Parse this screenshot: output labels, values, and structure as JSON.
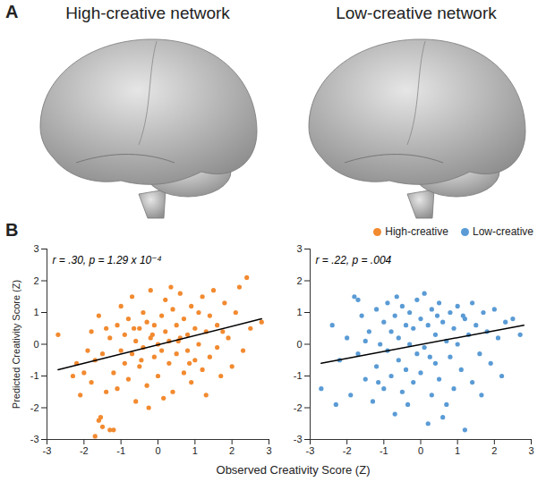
{
  "figure": {
    "panel_a": {
      "label": "A",
      "titles": [
        "High-creative network",
        "Low-creative network"
      ]
    },
    "panel_b": {
      "label": "B",
      "xlabel": "Observed Creativity Score (Z)",
      "ylabel": "Predicted Creativity Score (Z)",
      "legend": "top-right"
    }
  },
  "chart_data": [
    {
      "type": "scatter",
      "annotation": "r = .30, p = 1.29 x 10⁻⁴",
      "xlim": [
        -3,
        3
      ],
      "ylim": [
        -3,
        3
      ],
      "xticks": [
        -3,
        -2,
        -1,
        0,
        1,
        2,
        3
      ],
      "yticks": [
        -3,
        -2,
        -1,
        0,
        1,
        2,
        3
      ],
      "x": [
        -2.7,
        -2.3,
        -2.2,
        -2.0,
        -1.9,
        -1.8,
        -1.7,
        -1.6,
        -1.5,
        -1.3,
        -1.2,
        -1.55,
        -1.8,
        -1.7,
        -1.6,
        -1.5,
        -1.4,
        -1.3,
        -1.2,
        -1.1,
        -1.1,
        -1.0,
        -1.0,
        -0.9,
        -0.9,
        -0.8,
        -0.8,
        -0.7,
        -0.7,
        -0.6,
        -0.6,
        -0.5,
        -0.5,
        -0.4,
        -0.4,
        -0.3,
        -0.3,
        -0.2,
        -0.2,
        -0.1,
        -0.1,
        0.0,
        0.0,
        0.1,
        0.1,
        0.2,
        0.2,
        0.3,
        0.3,
        0.4,
        0.4,
        0.5,
        0.5,
        0.6,
        0.6,
        0.7,
        0.7,
        0.8,
        0.8,
        0.9,
        0.9,
        1.0,
        1.0,
        1.1,
        1.1,
        1.2,
        1.2,
        1.3,
        1.4,
        1.4,
        1.5,
        1.6,
        1.6,
        1.7,
        1.8,
        1.9,
        2.0,
        2.1,
        2.2,
        2.3,
        2.4,
        2.5,
        2.8,
        -0.25,
        0.15,
        -1.4,
        0.35,
        1.3,
        -0.65,
        0.85,
        -0.45,
        0.55,
        -0.15,
        1.75,
        -2.1
      ],
      "series": [
        {
          "name": "High-creative",
          "color": "#f28a30",
          "values": [
            0.3,
            -1.0,
            -0.6,
            -0.9,
            -0.2,
            0.4,
            -2.9,
            -2.4,
            -2.6,
            -2.7,
            -2.7,
            -2.3,
            -1.2,
            -0.5,
            0.9,
            -0.3,
            -1.5,
            0.2,
            -0.9,
            0.6,
            -1.4,
            -0.2,
            1.2,
            -0.6,
            0.3,
            -1.1,
            0.8,
            -0.3,
            1.5,
            0.1,
            -1.8,
            0.5,
            -0.7,
            1.0,
            -0.1,
            0.7,
            -1.3,
            0.2,
            1.7,
            -0.4,
            0.6,
            0.0,
            -1.0,
            0.9,
            -0.2,
            0.4,
            1.4,
            -0.6,
            0.1,
            1.1,
            -1.5,
            0.6,
            -0.3,
            0.2,
            1.6,
            -0.9,
            0.8,
            0.3,
            -0.2,
            1.2,
            -1.2,
            0.5,
            -0.5,
            1.0,
            0.0,
            -0.8,
            1.5,
            0.4,
            -0.4,
            0.9,
            1.7,
            -0.1,
            0.6,
            -1.0,
            1.3,
            0.2,
            -0.7,
            1.0,
            1.8,
            -0.2,
            2.1,
            0.5,
            0.7,
            -2.0,
            -1.7,
            0.5,
            1.8,
            -1.6,
            0.5,
            -0.6,
            -0.5,
            0.1,
            0.3,
            0.4,
            -1.6
          ]
        }
      ],
      "fit_line": {
        "x": [
          -2.7,
          2.8
        ],
        "y": [
          -0.8,
          0.8
        ]
      }
    },
    {
      "type": "scatter",
      "annotation": "r = .22, p = .004",
      "xlim": [
        -3,
        3
      ],
      "ylim": [
        -3,
        3
      ],
      "xticks": [
        -3,
        -2,
        -1,
        0,
        1,
        2,
        3
      ],
      "yticks": [
        -3,
        -2,
        -1,
        0,
        1,
        2,
        3
      ],
      "x": [
        -2.7,
        -2.3,
        -2.2,
        -2.0,
        -1.9,
        -1.8,
        -1.7,
        -1.7,
        -1.6,
        -1.5,
        -1.4,
        -1.3,
        -1.2,
        -1.2,
        -1.1,
        -1.0,
        -1.0,
        -0.9,
        -0.9,
        -0.8,
        -0.8,
        -0.7,
        -0.7,
        -0.6,
        -0.6,
        -0.5,
        -0.5,
        -0.4,
        -0.4,
        -0.3,
        -0.3,
        -0.2,
        -0.2,
        -0.1,
        -0.1,
        0.0,
        0.0,
        0.1,
        0.1,
        0.2,
        0.2,
        0.3,
        0.3,
        0.4,
        0.4,
        0.5,
        0.5,
        0.6,
        0.6,
        0.7,
        0.7,
        0.8,
        0.8,
        0.9,
        0.9,
        1.0,
        1.0,
        1.1,
        1.2,
        1.2,
        1.3,
        1.4,
        1.4,
        1.5,
        1.6,
        1.7,
        1.8,
        1.9,
        2.0,
        2.1,
        2.2,
        2.3,
        2.5,
        2.7,
        -1.5,
        -0.35,
        0.25,
        1.15,
        -0.65,
        0.45,
        -1.15,
        1.65,
        -2.4
      ],
      "series": [
        {
          "name": "Low-creative",
          "color": "#5a9bd5",
          "values": [
            -1.4,
            -1.9,
            -0.5,
            0.2,
            -1.6,
            1.5,
            1.4,
            -0.3,
            0.9,
            -1.1,
            0.4,
            -1.8,
            1.1,
            -0.7,
            0.0,
            -1.4,
            0.7,
            -0.2,
            1.3,
            -1.0,
            0.4,
            -2.2,
            0.9,
            -0.5,
            0.2,
            1.2,
            -1.5,
            0.6,
            -0.8,
            0.0,
            1.0,
            -1.2,
            0.5,
            -0.3,
            1.4,
            0.8,
            -0.9,
            1.6,
            -0.1,
            -2.5,
            0.6,
            -1.6,
            1.1,
            0.3,
            -0.6,
            1.3,
            -1.1,
            -2.3,
            0.7,
            0.1,
            -1.9,
            1.0,
            -0.4,
            0.5,
            -1.4,
            1.2,
            0.0,
            -0.8,
            -2.7,
            0.8,
            0.3,
            1.3,
            -1.2,
            0.6,
            -0.3,
            1.0,
            0.4,
            -0.6,
            1.1,
            0.2,
            -1.0,
            0.7,
            0.8,
            0.3,
            0.1,
            -1.9,
            -0.4,
            0.9,
            1.5,
            0.9,
            -1.2,
            -1.6,
            0.6
          ]
        }
      ],
      "fit_line": {
        "x": [
          -2.7,
          2.8
        ],
        "y": [
          -0.6,
          0.6
        ]
      }
    }
  ]
}
